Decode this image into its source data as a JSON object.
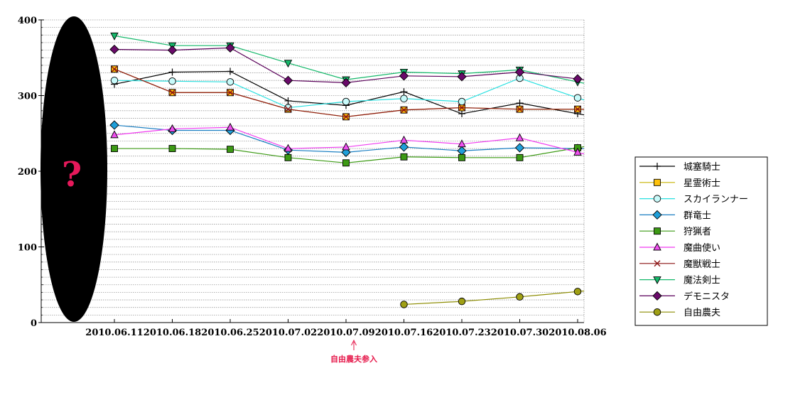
{
  "chart_data": {
    "type": "line",
    "title": "",
    "xlabel": "",
    "ylabel": "",
    "categories": [
      "2010.06.11",
      "2010.06.18",
      "2010.06.25",
      "2010.07.02",
      "2010.07.09",
      "2010.07.16",
      "2010.07.23",
      "2010.07.30",
      "2010.08.06"
    ],
    "ylim": [
      0,
      400
    ],
    "yticks": [
      0,
      100,
      200,
      300,
      400
    ],
    "grid": "horizontal-dashed",
    "legend_position": "right",
    "annotation": {
      "text": "自由農夫参入",
      "at": "2010.07.09",
      "color": "#e6194b"
    },
    "mystery_mark": "?",
    "series": [
      {
        "name": "城塞騎士",
        "marker": "plus",
        "line_color": "#000000",
        "marker_fill": "#000000",
        "values": [
          315,
          331,
          332,
          293,
          287,
          305,
          276,
          290,
          276
        ]
      },
      {
        "name": "星霊術士",
        "marker": "square",
        "line_color": "#c8b400",
        "marker_fill": "#ffc20a",
        "values": [
          335,
          304,
          304,
          282,
          272,
          281,
          284,
          282,
          282
        ]
      },
      {
        "name": "スカイランナー",
        "marker": "circle",
        "line_color": "#29e0e0",
        "marker_fill": "#c8fafa",
        "values": [
          320,
          319,
          318,
          284,
          292,
          296,
          292,
          323,
          297
        ]
      },
      {
        "name": "群竜士",
        "marker": "diamond",
        "line_color": "#1a7fc2",
        "marker_fill": "#1f9fd9",
        "values": [
          261,
          254,
          254,
          228,
          225,
          232,
          227,
          231,
          230
        ]
      },
      {
        "name": "狩猟者",
        "marker": "square",
        "line_color": "#3c9a14",
        "marker_fill": "#3c9a14",
        "values": [
          230,
          230,
          229,
          218,
          211,
          219,
          218,
          218,
          231
        ]
      },
      {
        "name": "魔曲使い",
        "marker": "triangle-up",
        "line_color": "#f03cf0",
        "marker_fill": "#f050f0",
        "values": [
          248,
          256,
          258,
          230,
          232,
          241,
          236,
          244,
          225
        ]
      },
      {
        "name": "魔獣戦士",
        "marker": "cross",
        "line_color": "#8c1414",
        "marker_fill": "#8c1414",
        "values": [
          335,
          304,
          304,
          282,
          272,
          281,
          284,
          282,
          282
        ]
      },
      {
        "name": "魔法剣士",
        "marker": "triangle-down",
        "line_color": "#14b86a",
        "marker_fill": "#14b86a",
        "values": [
          379,
          366,
          366,
          343,
          321,
          331,
          329,
          334,
          318
        ]
      },
      {
        "name": "デモニスタ",
        "marker": "diamond",
        "line_color": "#5a005a",
        "marker_fill": "#6a0a6a",
        "values": [
          361,
          360,
          363,
          320,
          317,
          326,
          325,
          331,
          322
        ]
      },
      {
        "name": "自由農夫",
        "marker": "circle",
        "line_color": "#8c8c00",
        "marker_fill": "#a0a014",
        "values": [
          null,
          null,
          null,
          null,
          null,
          24,
          28,
          34,
          41
        ]
      }
    ]
  }
}
